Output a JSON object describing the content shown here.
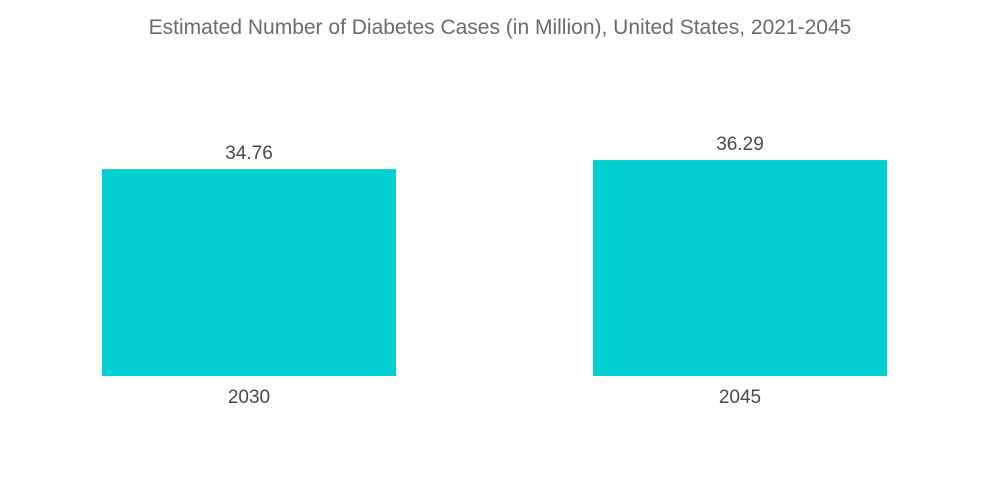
{
  "colors": {
    "bar": "#00CED1",
    "text": "#4a4a4a",
    "title": "#6b6b6b",
    "background": "#ffffff"
  },
  "chart_data": {
    "type": "bar",
    "title": "Estimated Number of Diabetes Cases (in Million), United States, 2021-2045",
    "xlabel": "",
    "ylabel": "",
    "categories": [
      "2030",
      "2045"
    ],
    "values": [
      34.76,
      36.29
    ],
    "value_labels": [
      "34.76",
      "36.29"
    ],
    "grid": false,
    "legend": "none"
  }
}
